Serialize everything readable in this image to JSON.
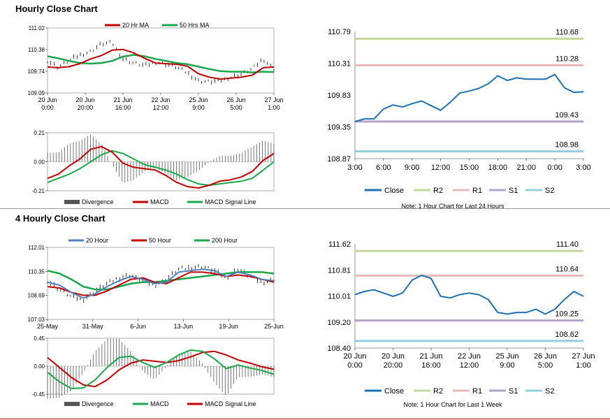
{
  "sections": {
    "hourly_title": "Hourly Close Chart",
    "four_hourly_title": "4 Hourly Close Chart"
  },
  "colors": {
    "ma20": "#c00000",
    "ma50": "#1aa64a",
    "ma20_4h": "#4f81bd",
    "ma50_4h": "#c00000",
    "ma200_4h": "#1aa64a",
    "close": "#1f6fb2",
    "r2": "#c3d69b",
    "r1": "#e6b9b8",
    "s1": "#b3a2c7",
    "s2": "#93cddd",
    "divergence": "#555555"
  },
  "chart_data": [
    {
      "id": "hourly_price",
      "type": "line",
      "title": "",
      "ylim": [
        109.09,
        111.02
      ],
      "yticks": [
        "111.02",
        "110.38",
        "109.74",
        "109.09"
      ],
      "xticks": [
        [
          "20 Jun",
          "0:00"
        ],
        [
          "20 Jun",
          "20:00"
        ],
        [
          "21 Jun",
          "16:00"
        ],
        [
          "22 Jun",
          "12:00"
        ],
        [
          "25 Jun",
          "9:00"
        ],
        [
          "26 Jun",
          "5:00"
        ],
        [
          "27 Jun",
          "1:00"
        ]
      ],
      "legend": [
        "20 Hr MA",
        "50 Hrs MA"
      ],
      "series": [
        {
          "name": "20 Hr MA",
          "values": [
            109.86,
            109.84,
            109.87,
            109.96,
            110.1,
            110.2,
            110.36,
            110.38,
            110.28,
            110.12,
            109.98,
            109.96,
            109.94,
            109.88,
            109.66,
            109.56,
            109.5,
            109.53,
            109.56,
            109.62,
            109.84,
            109.86
          ]
        },
        {
          "name": "50 Hrs MA",
          "values": [
            110.18,
            110.12,
            110.04,
            109.98,
            109.96,
            109.98,
            110.04,
            110.17,
            110.22,
            110.18,
            110.1,
            110.04,
            109.98,
            109.94,
            109.87,
            109.8,
            109.74,
            109.72,
            109.72,
            109.7,
            109.72,
            109.71
          ]
        },
        {
          "name": "Close",
          "values": [
            110.05,
            109.85,
            110.05,
            110.22,
            110.32,
            110.55,
            110.58,
            110.1,
            109.98,
            109.9,
            110.0,
            109.95,
            109.85,
            109.68,
            109.45,
            109.42,
            109.45,
            109.55,
            109.65,
            109.8,
            110.1,
            109.8
          ]
        }
      ]
    },
    {
      "id": "hourly_macd",
      "type": "line",
      "ylim": [
        -0.21,
        0.21
      ],
      "yticks": [
        "0.21",
        "0.00",
        "-0.21"
      ],
      "legend": [
        "Divergence",
        "MACD",
        "MACD Signal Line"
      ],
      "series": [
        {
          "name": "MACD",
          "values": [
            -0.12,
            -0.09,
            -0.03,
            0.02,
            0.09,
            0.11,
            0.07,
            -0.01,
            -0.04,
            -0.05,
            -0.06,
            -0.1,
            -0.15,
            -0.18,
            -0.19,
            -0.17,
            -0.14,
            -0.13,
            -0.11,
            -0.07,
            0.01,
            0.06
          ]
        },
        {
          "name": "MACD Signal Line",
          "values": [
            -0.15,
            -0.12,
            -0.09,
            -0.05,
            0.0,
            0.05,
            0.08,
            0.06,
            0.02,
            -0.02,
            -0.04,
            -0.06,
            -0.09,
            -0.13,
            -0.16,
            -0.17,
            -0.16,
            -0.15,
            -0.14,
            -0.12,
            -0.06,
            0.0
          ]
        }
      ]
    },
    {
      "id": "hourly_levels",
      "type": "line",
      "ylim": [
        108.87,
        110.79
      ],
      "yticks": [
        "110.79",
        "110.31",
        "109.83",
        "109.35",
        "108.87"
      ],
      "xticks": [
        "3:00",
        "6:00",
        "9:00",
        "12:00",
        "15:00",
        "18:00",
        "21:00",
        "0:00",
        "3:00"
      ],
      "levels": [
        {
          "name": "R2",
          "value": 110.68,
          "label": "110.68"
        },
        {
          "name": "R1",
          "value": 110.28,
          "label": "110.28"
        },
        {
          "name": "S1",
          "value": 109.43,
          "label": "109.43"
        },
        {
          "name": "S2",
          "value": 108.98,
          "label": "108.98"
        }
      ],
      "series": [
        {
          "name": "Close",
          "values": [
            109.43,
            109.47,
            109.47,
            109.62,
            109.68,
            109.65,
            109.7,
            109.74,
            109.67,
            109.6,
            109.72,
            109.86,
            109.89,
            109.93,
            110.0,
            110.12,
            110.05,
            110.09,
            110.07,
            110.07,
            110.07,
            110.14,
            109.94,
            109.87,
            109.88
          ]
        }
      ],
      "legend": [
        "Close",
        "R2",
        "R1",
        "S1",
        "S2"
      ],
      "note": "Note: 1 Hour Chart for Last 24 Hours"
    },
    {
      "id": "four_hourly_price",
      "type": "line",
      "ylim": [
        107.03,
        112.01
      ],
      "yticks": [
        "112.01",
        "110.35",
        "108.69",
        "107.03"
      ],
      "xticks": [
        "25-May",
        "31-May",
        "6-Jun",
        "13-Jun",
        "19-Jun",
        "25-Jun"
      ],
      "legend": [
        "20 Hour",
        "50 Hour",
        "200 Hour"
      ],
      "series": [
        {
          "name": "20 Hour",
          "values": [
            109.6,
            109.4,
            108.9,
            108.5,
            108.8,
            109.3,
            109.7,
            110.0,
            109.8,
            109.5,
            109.6,
            110.3,
            110.4,
            110.5,
            110.4,
            110.0,
            110.3,
            110.1,
            109.8,
            109.7
          ]
        },
        {
          "name": "50 Hour",
          "values": [
            109.3,
            109.2,
            108.9,
            108.7,
            108.7,
            109.0,
            109.4,
            109.8,
            109.9,
            109.6,
            109.5,
            109.9,
            110.3,
            110.3,
            110.2,
            110.0,
            110.1,
            110.0,
            109.8,
            109.6
          ]
        },
        {
          "name": "200 Hour",
          "values": [
            110.4,
            110.2,
            109.8,
            109.3,
            109.1,
            109.1,
            109.3,
            109.5,
            109.6,
            109.6,
            109.7,
            109.8,
            109.9,
            110.0,
            110.1,
            110.2,
            110.3,
            110.3,
            110.3,
            110.2
          ]
        },
        {
          "name": "Close",
          "values": [
            109.7,
            109.1,
            108.6,
            108.4,
            109.0,
            109.5,
            109.9,
            110.1,
            109.7,
            109.4,
            109.8,
            110.5,
            110.6,
            110.7,
            110.4,
            109.9,
            110.5,
            110.0,
            109.6,
            109.8
          ]
        }
      ]
    },
    {
      "id": "four_hourly_macd",
      "type": "line",
      "ylim": [
        -0.45,
        0.45
      ],
      "yticks": [
        "0.45",
        "0.00",
        "-0.45"
      ],
      "legend": [
        "Divergence",
        "MACD",
        "MACD Signal Line"
      ],
      "series": [
        {
          "name": "MACD",
          "values": [
            -0.1,
            -0.25,
            -0.36,
            -0.35,
            -0.22,
            -0.02,
            0.14,
            0.16,
            0.06,
            -0.02,
            0.06,
            0.18,
            0.26,
            0.24,
            0.12,
            -0.04,
            0.02,
            -0.03,
            -0.07,
            -0.13
          ]
        },
        {
          "name": "MACD Signal Line",
          "values": [
            0.14,
            -0.02,
            -0.18,
            -0.3,
            -0.33,
            -0.22,
            -0.06,
            0.05,
            0.1,
            0.08,
            0.06,
            0.09,
            0.15,
            0.22,
            0.24,
            0.18,
            0.1,
            0.05,
            -0.01,
            -0.05
          ]
        }
      ]
    },
    {
      "id": "four_hourly_levels",
      "type": "line",
      "ylim": [
        108.4,
        111.62
      ],
      "yticks": [
        "111.62",
        "110.81",
        "110.01",
        "109.20",
        "108.40"
      ],
      "xticks": [
        [
          "20 Jun",
          "0:00"
        ],
        [
          "20 Jun",
          "20:00"
        ],
        [
          "21 Jun",
          "16:00"
        ],
        [
          "22 Jun",
          "12:00"
        ],
        [
          "25 Jun",
          "9:00"
        ],
        [
          "26 Jun",
          "5:00"
        ],
        [
          "27 Jun",
          "1:00"
        ]
      ],
      "levels": [
        {
          "name": "R2",
          "value": 111.4,
          "label": "111.40"
        },
        {
          "name": "R1",
          "value": 110.64,
          "label": "110.64"
        },
        {
          "name": "S1",
          "value": 109.25,
          "label": "109.25"
        },
        {
          "name": "S2",
          "value": 108.62,
          "label": "108.62"
        }
      ],
      "series": [
        {
          "name": "Close",
          "values": [
            110.05,
            110.15,
            110.2,
            110.1,
            110.0,
            110.1,
            110.5,
            110.65,
            110.55,
            110.0,
            109.95,
            110.05,
            110.1,
            110.05,
            109.9,
            109.5,
            109.45,
            109.5,
            109.5,
            109.6,
            109.45,
            109.6,
            109.9,
            110.15,
            110.0
          ]
        }
      ],
      "legend": [
        "Close",
        "R2",
        "R1",
        "S1",
        "S2"
      ],
      "note": "Note: 1 Hour Chart for Last 1 Week"
    }
  ]
}
